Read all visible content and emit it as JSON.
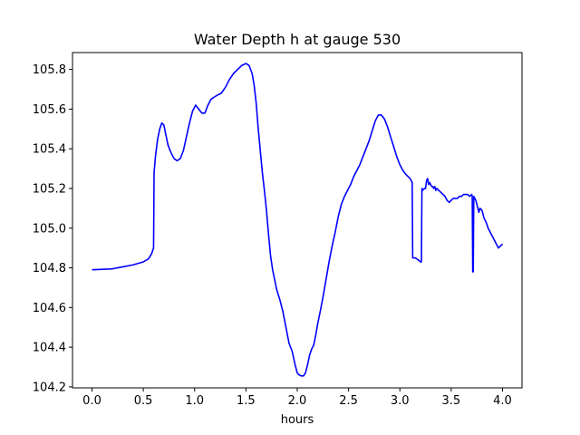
{
  "chart_data": {
    "type": "line",
    "title": "Water Depth h at gauge 530",
    "xlabel": "hours",
    "ylabel": "",
    "xlim": [
      -0.19,
      4.19
    ],
    "ylim": [
      104.195,
      105.885
    ],
    "xticks": [
      0.0,
      0.5,
      1.0,
      1.5,
      2.0,
      2.5,
      3.0,
      3.5,
      4.0
    ],
    "xtick_labels": [
      "0.0",
      "0.5",
      "1.0",
      "1.5",
      "2.0",
      "2.5",
      "3.0",
      "3.5",
      "4.0"
    ],
    "yticks": [
      104.2,
      104.4,
      104.6,
      104.8,
      105.0,
      105.2,
      105.4,
      105.6,
      105.8
    ],
    "ytick_labels": [
      "104.2",
      "104.4",
      "104.6",
      "104.8",
      "105.0",
      "105.2",
      "105.4",
      "105.6",
      "105.8"
    ],
    "grid": false,
    "series": [
      {
        "color": "#0000ff",
        "x": [
          0.0,
          0.2,
          0.3,
          0.4,
          0.5,
          0.55,
          0.58,
          0.6,
          0.605,
          0.62,
          0.64,
          0.66,
          0.68,
          0.7,
          0.72,
          0.74,
          0.77,
          0.8,
          0.83,
          0.86,
          0.89,
          0.92,
          0.95,
          0.98,
          1.01,
          1.04,
          1.07,
          1.1,
          1.13,
          1.16,
          1.19,
          1.22,
          1.26,
          1.3,
          1.34,
          1.38,
          1.42,
          1.46,
          1.5,
          1.53,
          1.56,
          1.58,
          1.6,
          1.62,
          1.64,
          1.66,
          1.68,
          1.7,
          1.72,
          1.74,
          1.76,
          1.78,
          1.8,
          1.83,
          1.86,
          1.89,
          1.92,
          1.95,
          1.98,
          2.0,
          2.02,
          2.04,
          2.06,
          2.08,
          2.1,
          2.12,
          2.14,
          2.16,
          2.18,
          2.2,
          2.22,
          2.25,
          2.28,
          2.31,
          2.34,
          2.37,
          2.4,
          2.43,
          2.46,
          2.49,
          2.52,
          2.55,
          2.58,
          2.61,
          2.64,
          2.67,
          2.7,
          2.73,
          2.76,
          2.79,
          2.82,
          2.85,
          2.88,
          2.91,
          2.94,
          2.97,
          3.0,
          3.03,
          3.06,
          3.08,
          3.1,
          3.12,
          3.125,
          3.15,
          3.18,
          3.2,
          3.21,
          3.215,
          3.22,
          3.24,
          3.25,
          3.26,
          3.27,
          3.28,
          3.29,
          3.3,
          3.31,
          3.32,
          3.33,
          3.34,
          3.35,
          3.36,
          3.38,
          3.4,
          3.42,
          3.44,
          3.46,
          3.48,
          3.5,
          3.52,
          3.54,
          3.56,
          3.58,
          3.6,
          3.62,
          3.64,
          3.66,
          3.68,
          3.7,
          3.705,
          3.71,
          3.715,
          3.72,
          3.73,
          3.74,
          3.75,
          3.76,
          3.77,
          3.78,
          3.8,
          3.82,
          3.84,
          3.86,
          3.88,
          3.9,
          3.92,
          3.94,
          3.96,
          3.98,
          4.0
        ],
        "y": [
          104.79,
          104.795,
          104.805,
          104.815,
          104.83,
          104.845,
          104.87,
          104.9,
          105.28,
          105.37,
          105.45,
          105.5,
          105.53,
          105.52,
          105.47,
          105.42,
          105.38,
          105.35,
          105.34,
          105.35,
          105.39,
          105.46,
          105.53,
          105.59,
          105.62,
          105.6,
          105.58,
          105.58,
          105.62,
          105.65,
          105.66,
          105.67,
          105.68,
          105.71,
          105.75,
          105.78,
          105.8,
          105.82,
          105.83,
          105.82,
          105.78,
          105.72,
          105.63,
          105.5,
          105.39,
          105.28,
          105.19,
          105.09,
          104.97,
          104.86,
          104.79,
          104.74,
          104.69,
          104.64,
          104.58,
          104.5,
          104.42,
          104.38,
          104.31,
          104.27,
          104.26,
          104.255,
          104.255,
          104.27,
          104.31,
          104.36,
          104.39,
          104.41,
          104.46,
          104.52,
          104.57,
          104.65,
          104.74,
          104.83,
          104.91,
          104.98,
          105.06,
          105.12,
          105.16,
          105.19,
          105.22,
          105.26,
          105.29,
          105.32,
          105.36,
          105.4,
          105.44,
          105.49,
          105.54,
          105.57,
          105.57,
          105.55,
          105.51,
          105.46,
          105.41,
          105.36,
          105.32,
          105.29,
          105.27,
          105.26,
          105.25,
          105.23,
          104.85,
          104.85,
          104.84,
          104.83,
          104.83,
          105.2,
          105.19,
          105.2,
          105.2,
          105.24,
          105.25,
          105.22,
          105.23,
          105.22,
          105.21,
          105.21,
          105.2,
          105.21,
          105.19,
          105.2,
          105.19,
          105.18,
          105.17,
          105.16,
          105.14,
          105.13,
          105.14,
          105.15,
          105.15,
          105.15,
          105.16,
          105.16,
          105.17,
          105.17,
          105.17,
          105.16,
          105.17,
          105.16,
          104.78,
          104.78,
          105.16,
          105.15,
          105.14,
          105.12,
          105.1,
          105.08,
          105.1,
          105.09,
          105.05,
          105.03,
          105.0,
          104.98,
          104.96,
          104.94,
          104.92,
          104.9,
          104.91,
          104.92
        ]
      }
    ]
  }
}
